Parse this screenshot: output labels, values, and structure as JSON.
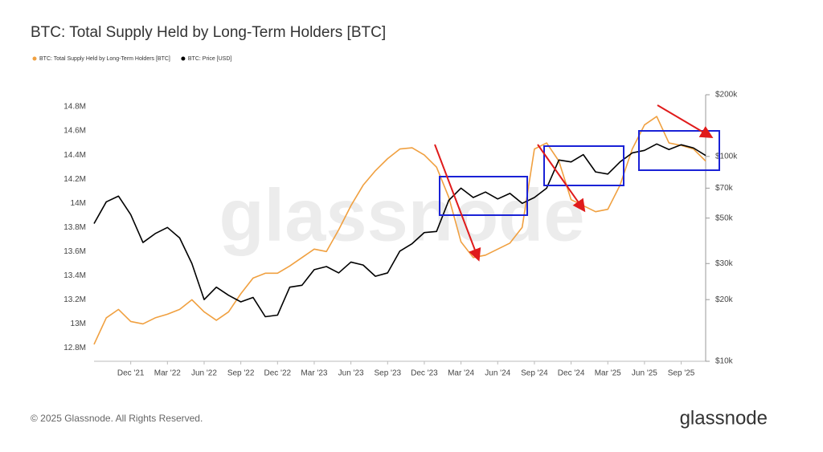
{
  "chart_data": {
    "type": "line",
    "title": "BTC: Total Supply Held by Long-Term Holders [BTC]",
    "watermark": "glassnode",
    "legend": "top-left",
    "categories": [
      null,
      null,
      null,
      "Dec '21",
      null,
      null,
      "Mar '22",
      null,
      null,
      "Jun '22",
      null,
      null,
      "Sep '22",
      null,
      null,
      "Dec '22",
      null,
      null,
      "Mar '23",
      null,
      null,
      "Jun '23",
      null,
      null,
      "Sep '23",
      null,
      null,
      "Dec '23",
      null,
      null,
      "Mar '24",
      null,
      null,
      "Jun '24",
      null,
      null,
      "Sep '24",
      null,
      null,
      "Dec '24",
      null,
      null,
      "Mar '25",
      null,
      null,
      "Jun '25",
      null,
      null,
      "Sep '25",
      null,
      null
    ],
    "series": [
      {
        "name": "BTC: Total Supply Held by Long-Term Holders [BTC]",
        "color": "#f0a040",
        "axis": "y",
        "values": [
          12830000,
          13050000,
          13120000,
          13020000,
          13000000,
          13050000,
          13080000,
          13120000,
          13200000,
          13100000,
          13030000,
          13100000,
          13250000,
          13380000,
          13420000,
          13420000,
          13480000,
          13550000,
          13620000,
          13600000,
          13780000,
          13980000,
          14150000,
          14270000,
          14370000,
          14450000,
          14460000,
          14400000,
          14300000,
          14050000,
          13680000,
          13550000,
          13570000,
          13620000,
          13670000,
          13800000,
          14450000,
          14500000,
          14350000,
          14030000,
          13980000,
          13930000,
          13950000,
          14150000,
          14450000,
          14650000,
          14720000,
          14500000,
          14480000,
          14450000,
          14350000
        ]
      },
      {
        "name": "BTC: Price [USD]",
        "color": "#000000",
        "axis": "y2",
        "values": [
          47000,
          60000,
          64000,
          52000,
          38000,
          42000,
          45000,
          40000,
          30000,
          20000,
          23000,
          21000,
          19500,
          20500,
          16500,
          16800,
          23000,
          23500,
          28000,
          29000,
          27000,
          30500,
          29500,
          26000,
          27000,
          34500,
          37500,
          42500,
          43000,
          61000,
          70000,
          63000,
          67000,
          62000,
          66000,
          59000,
          63000,
          70000,
          96000,
          94000,
          102000,
          84000,
          82000,
          94000,
          104000,
          107000,
          115000,
          108000,
          114000,
          110000,
          101000
        ]
      }
    ],
    "ylim": [
      12690000,
      14900000
    ],
    "yticks": [
      {
        "value": 12800000,
        "label": "12.8M"
      },
      {
        "value": 13000000,
        "label": "13M"
      },
      {
        "value": 13200000,
        "label": "13.2M"
      },
      {
        "value": 13400000,
        "label": "13.4M"
      },
      {
        "value": 13600000,
        "label": "13.6M"
      },
      {
        "value": 13800000,
        "label": "13.8M"
      },
      {
        "value": 14000000,
        "label": "14M"
      },
      {
        "value": 14200000,
        "label": "14.2M"
      },
      {
        "value": 14400000,
        "label": "14.4M"
      },
      {
        "value": 14600000,
        "label": "14.6M"
      },
      {
        "value": 14800000,
        "label": "14.8M"
      }
    ],
    "y2lim": [
      10000,
      200000
    ],
    "y2log": true,
    "y2ticks": [
      {
        "value": 10000,
        "label": "$10k"
      },
      {
        "value": 20000,
        "label": "$20k"
      },
      {
        "value": 30000,
        "label": "$30k"
      },
      {
        "value": 50000,
        "label": "$50k"
      },
      {
        "value": 70000,
        "label": "$70k"
      },
      {
        "value": 100000,
        "label": "$100k"
      },
      {
        "value": 200000,
        "label": "$200k"
      }
    ]
  },
  "footer": {
    "copyright": "© 2025 Glassnode. All Rights Reserved.",
    "logo": "glassnode"
  }
}
